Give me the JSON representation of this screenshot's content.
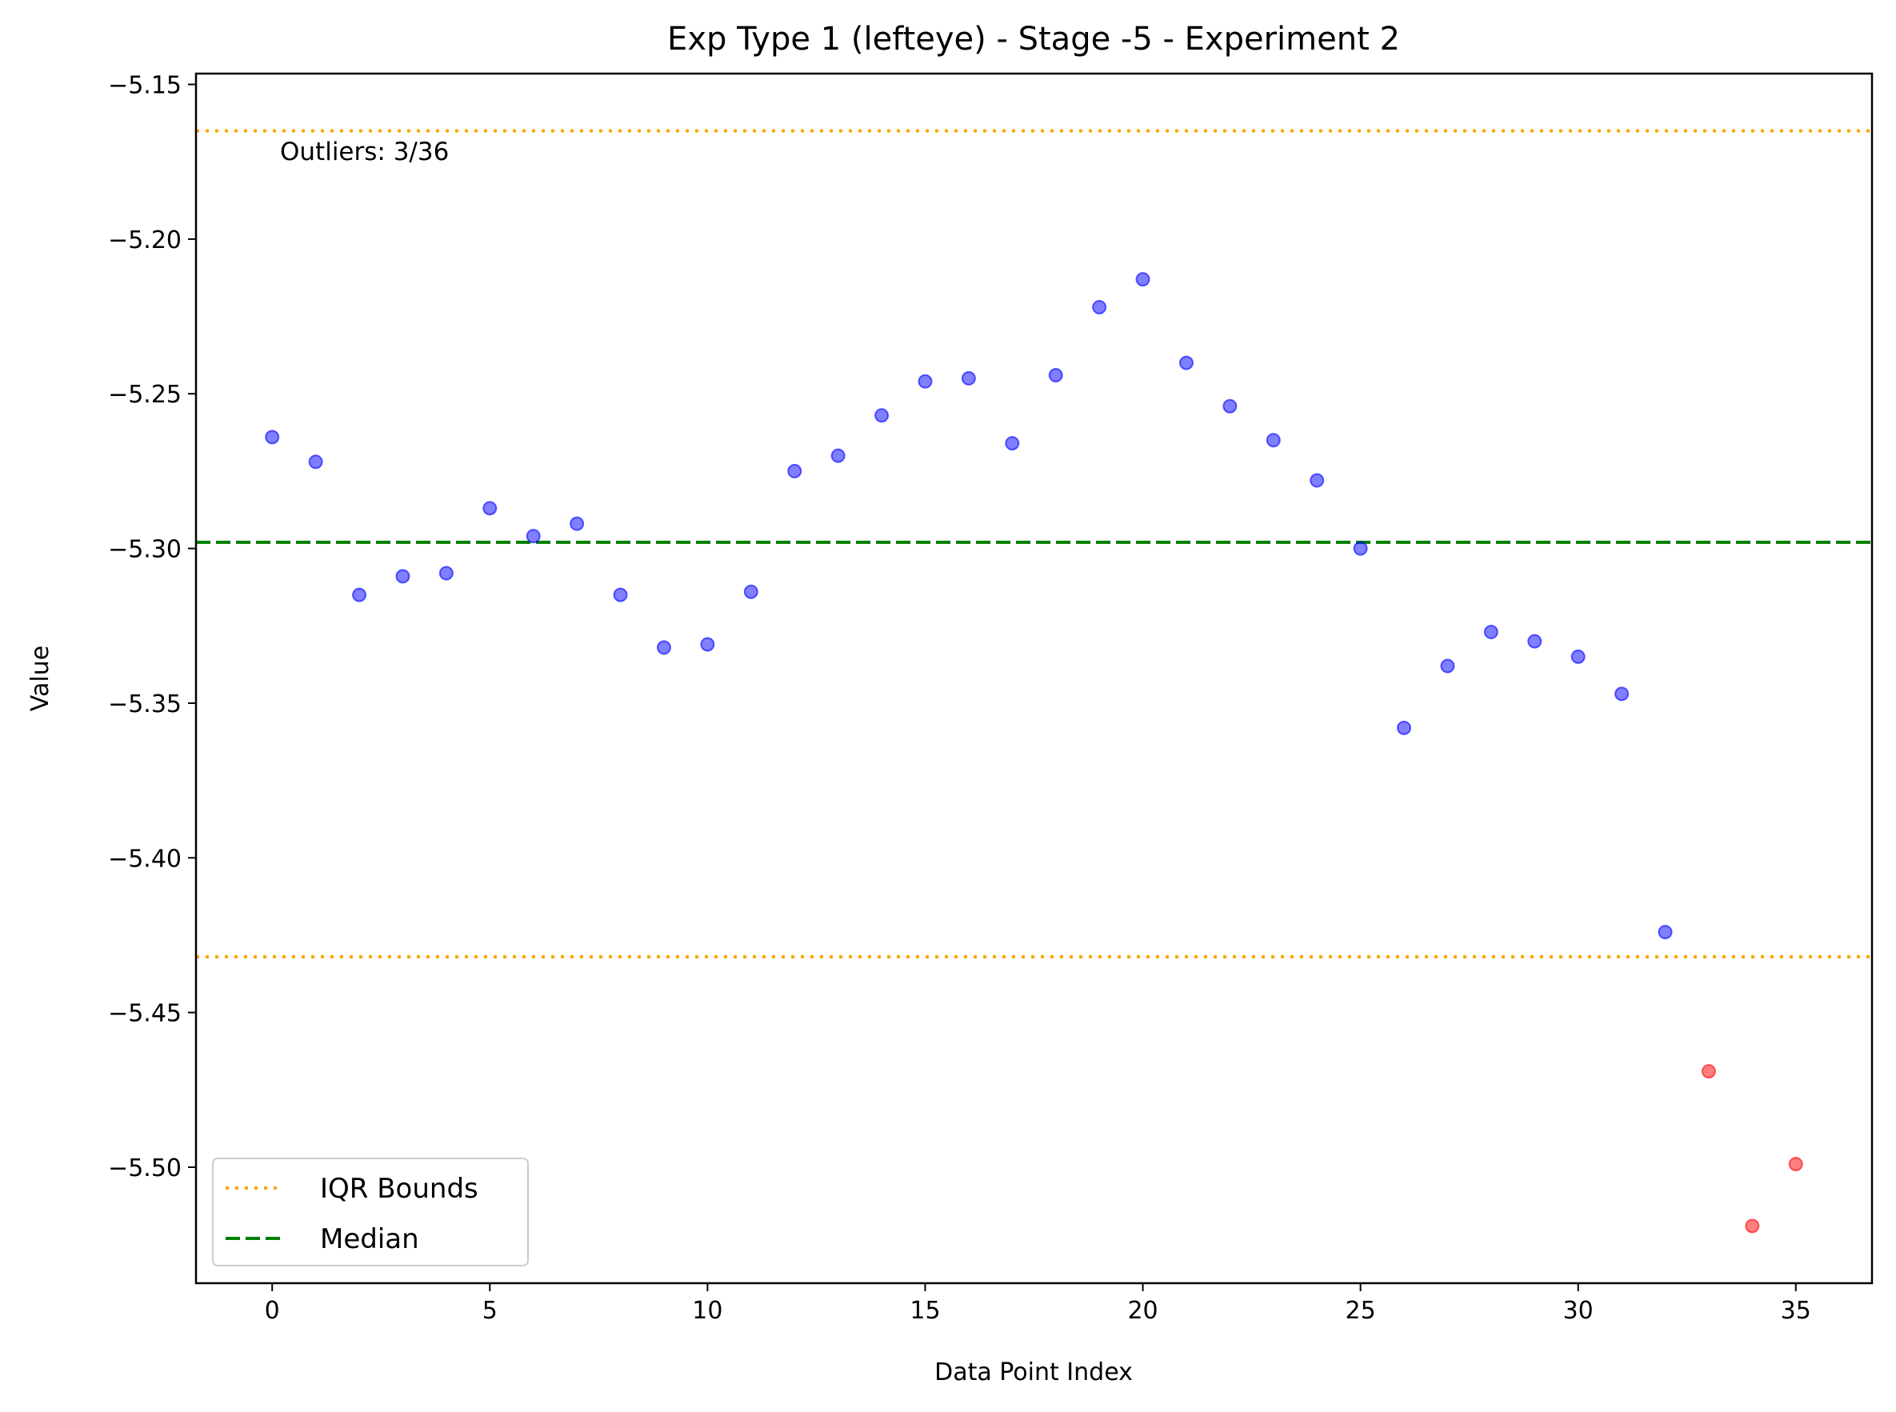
{
  "chart_data": {
    "type": "scatter",
    "title": "Exp Type 1 (lefteye) - Stage -5 - Experiment 2",
    "xlabel": "Data Point Index",
    "ylabel": "Value",
    "xlim": [
      -1.75,
      36.75
    ],
    "ylim": [
      -5.5375,
      -5.1465
    ],
    "xticks": [
      0,
      5,
      10,
      15,
      20,
      25,
      30,
      35
    ],
    "yticks": [
      -5.15,
      -5.2,
      -5.25,
      -5.3,
      -5.35,
      -5.4,
      -5.45,
      -5.5
    ],
    "ytick_labels": [
      "−5.15",
      "−5.20",
      "−5.25",
      "−5.30",
      "−5.35",
      "−5.40",
      "−5.45",
      "−5.50"
    ],
    "grid": false,
    "legend_position": "lower-left",
    "annotation": "Outliers: 3/36",
    "colors": {
      "normal": "#0000ff",
      "outlier": "#ff0000",
      "iqr": "#ffa500",
      "median": "#008000"
    },
    "points": {
      "x": [
        0,
        1,
        2,
        3,
        4,
        5,
        6,
        7,
        8,
        9,
        10,
        11,
        12,
        13,
        14,
        15,
        16,
        17,
        18,
        19,
        20,
        21,
        22,
        23,
        24,
        25,
        26,
        27,
        28,
        29,
        30,
        31,
        32,
        33,
        34,
        35
      ],
      "y": [
        -5.264,
        -5.272,
        -5.315,
        -5.309,
        -5.308,
        -5.287,
        -5.296,
        -5.292,
        -5.315,
        -5.332,
        -5.331,
        -5.314,
        -5.275,
        -5.27,
        -5.257,
        -5.246,
        -5.245,
        -5.266,
        -5.244,
        -5.222,
        -5.213,
        -5.24,
        -5.254,
        -5.265,
        -5.278,
        -5.3,
        -5.358,
        -5.338,
        -5.327,
        -5.33,
        -5.335,
        -5.347,
        -5.424,
        -5.469,
        -5.519,
        -5.499
      ],
      "outlier": [
        false,
        false,
        false,
        false,
        false,
        false,
        false,
        false,
        false,
        false,
        false,
        false,
        false,
        false,
        false,
        false,
        false,
        false,
        false,
        false,
        false,
        false,
        false,
        false,
        false,
        false,
        false,
        false,
        false,
        false,
        false,
        false,
        false,
        true,
        true,
        true
      ]
    },
    "lines": [
      {
        "name": "IQR Bounds",
        "style": "dotted",
        "y": [
          -5.165,
          -5.432
        ]
      },
      {
        "name": "Median",
        "style": "dashed",
        "y": [
          -5.298
        ]
      }
    ]
  }
}
